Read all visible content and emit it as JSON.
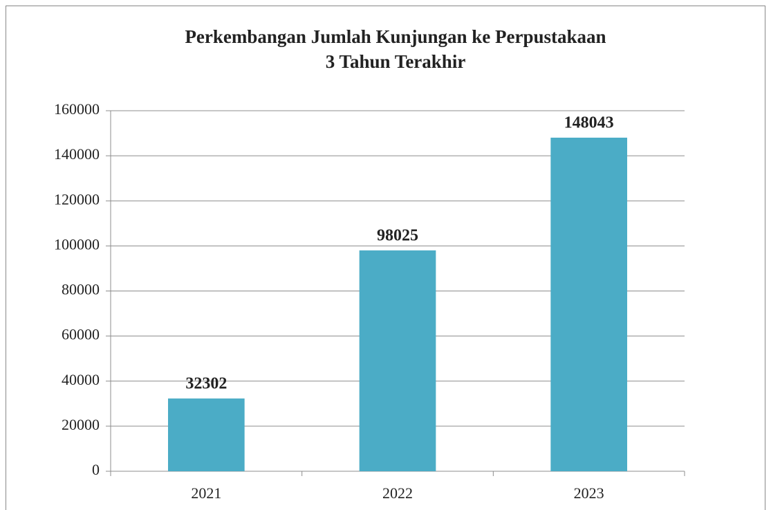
{
  "chart_data": {
    "type": "bar",
    "title": [
      "Perkembangan Jumlah Kunjungan  ke Perpustakaan",
      "3 Tahun Terakhir"
    ],
    "categories": [
      "2021",
      "2022",
      "2023"
    ],
    "values": [
      32302,
      98025,
      148043
    ],
    "color": "#4bacc6",
    "ylim": [
      0,
      160000
    ],
    "yticks": [
      0,
      20000,
      40000,
      60000,
      80000,
      100000,
      120000,
      140000,
      160000
    ],
    "grid": true,
    "data_labels": true
  }
}
